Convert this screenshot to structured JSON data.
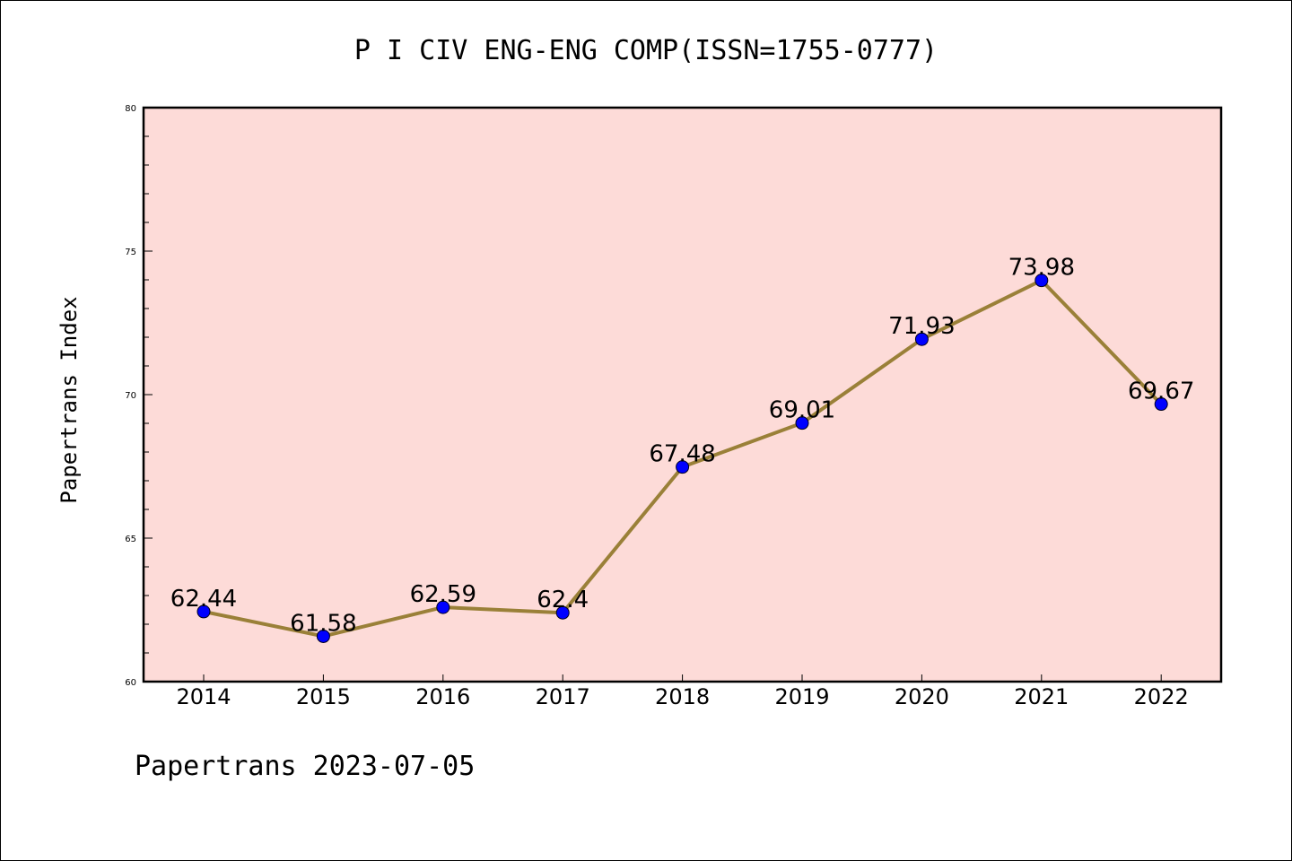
{
  "chart_data": {
    "type": "line",
    "title": "P I CIV ENG-ENG COMP(ISSN=1755-0777)",
    "xlabel": "",
    "ylabel": "Papertrans Index",
    "categories": [
      "2014",
      "2015",
      "2016",
      "2017",
      "2018",
      "2019",
      "2020",
      "2021",
      "2022"
    ],
    "values": [
      62.44,
      61.58,
      62.59,
      62.4,
      67.48,
      69.01,
      71.93,
      73.98,
      69.67
    ],
    "data_labels": [
      "62.44",
      "61.58",
      "62.59",
      "62.4",
      "67.48",
      "69.01",
      "71.93",
      "73.98",
      "69.67"
    ],
    "ylim": [
      60,
      80
    ],
    "yticks": [
      "60",
      "65",
      "70",
      "75",
      "80"
    ],
    "legend": "none",
    "grid": false,
    "colors": {
      "plot_background": "#fddbd8",
      "line": "#9a8038",
      "marker": "#0000ff"
    }
  },
  "footer": "Papertrans 2023-07-05"
}
